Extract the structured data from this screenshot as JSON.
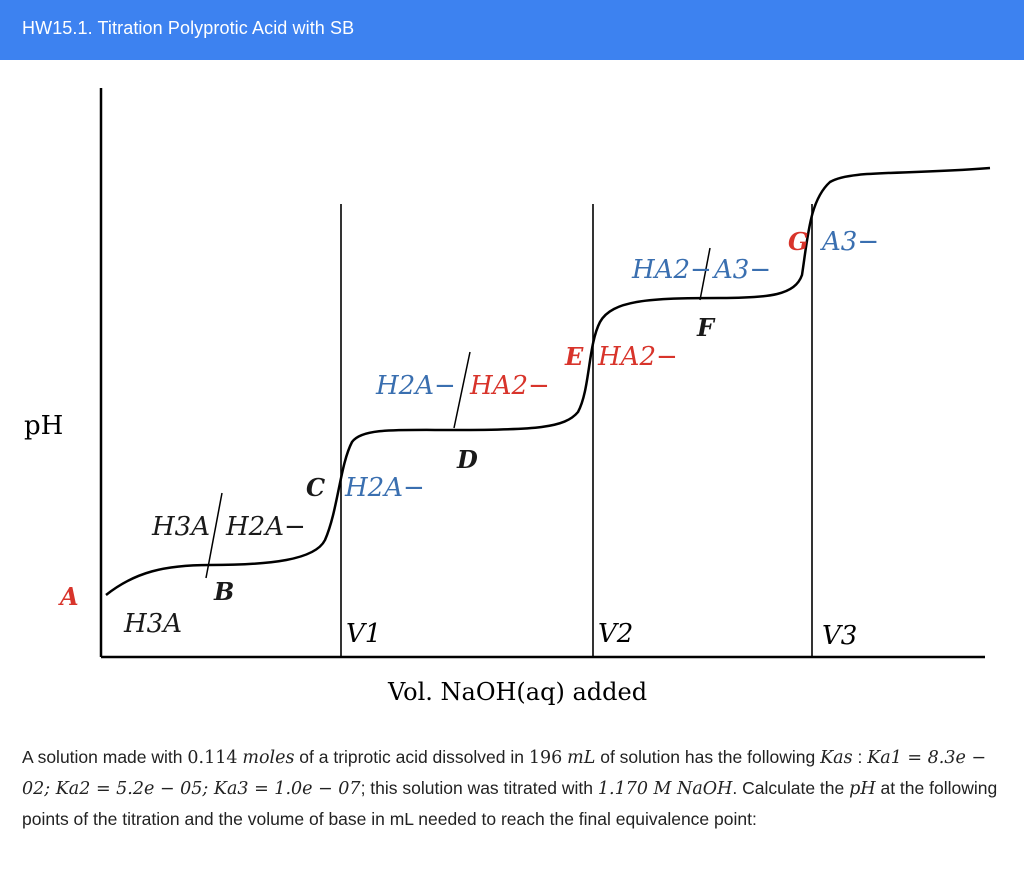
{
  "header": {
    "title": "HW15.1. Titration Polyprotic Acid with SB"
  },
  "figure": {
    "y_label": "pH",
    "x_label": "Vol. NaOH(aq) added",
    "equivalence_labels": [
      "V1",
      "V2",
      "V3"
    ],
    "points": [
      {
        "letter": "A",
        "color": "#d8342b"
      },
      {
        "letter": "B",
        "color": "#1a1a1a"
      },
      {
        "letter": "C",
        "color": "#1a1a1a"
      },
      {
        "letter": "D",
        "color": "#1a1a1a"
      },
      {
        "letter": "E",
        "color": "#d8342b"
      },
      {
        "letter": "F",
        "color": "#1a1a1a"
      },
      {
        "letter": "G",
        "color": "#d8342b"
      }
    ],
    "species": {
      "s1": "H3A",
      "s2a": "H3A",
      "s2b": "H2A−",
      "s3": "H2A−",
      "s4a": "H2A−",
      "s4b": "HA2−",
      "s5": "HA2−",
      "s6a": "HA2−",
      "s6b": "A3−",
      "s7": "A3−"
    },
    "colors": {
      "red": "#d8342b",
      "blue": "#3a6fb0",
      "curve": "#000000"
    }
  },
  "problem": {
    "p1": "A solution made with ",
    "moles_value": "0.114",
    "moles_unit": "moles",
    "p2": " of a triprotic acid dissolved in ",
    "vol_value": "196",
    "vol_unit": "mL",
    "p3": " of solution has the following ",
    "kas": "Kas",
    "p4": ": ",
    "ka1": "Ka1 = 8.3e − 02; ",
    "ka2": "Ka2 = 5.2e − 05; ",
    "ka3": "Ka3 = 1.0e − 07",
    "p5": "; this solution was titrated with ",
    "conc": "1.170 M NaOH",
    "p6": ". Calculate the ",
    "ph": "pH",
    "p7": " at the following points of the titration and the volume of base in mL needed to reach the final equivalence point:"
  }
}
